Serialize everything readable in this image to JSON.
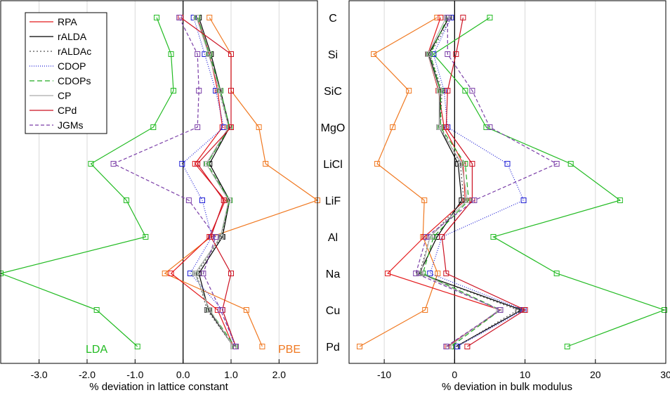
{
  "materials": [
    "C",
    "Si",
    "SiC",
    "MgO",
    "LiCl",
    "LiF",
    "Al",
    "Na",
    "Cu",
    "Pd"
  ],
  "legend": [
    {
      "name": "RPA",
      "color": "#e41a1c",
      "dash": "",
      "marker": false
    },
    {
      "name": "rALDA",
      "color": "#000000",
      "dash": "",
      "marker": false
    },
    {
      "name": "rALDAc",
      "color": "#555555",
      "dash": "2,3",
      "marker": false
    },
    {
      "name": "CDOP",
      "color": "#1f1fd6",
      "dash": "1,2",
      "marker": false
    },
    {
      "name": "CDOPs",
      "color": "#22aa22",
      "dash": "7,4",
      "marker": false
    },
    {
      "name": "CP",
      "color": "#aaaaaa",
      "dash": "",
      "marker": false
    },
    {
      "name": "CPd",
      "color": "#cc1122",
      "dash": "",
      "marker": false
    },
    {
      "name": "JGMs",
      "color": "#7b3fa8",
      "dash": "5,3",
      "marker": false
    }
  ],
  "chart_data": [
    {
      "type": "line",
      "orientation": "horizontal",
      "xlabel": "% deviation in lattice constant",
      "xlim": [
        -3.8,
        2.8
      ],
      "xticks": [
        -3.0,
        -2.0,
        -1.0,
        0.0,
        1.0,
        2.0
      ],
      "xticklabels": [
        "-3.0",
        "-2.0",
        "-1.0",
        "0.0",
        "1.0",
        "2.0"
      ],
      "categories": [
        "C",
        "Si",
        "SiC",
        "MgO",
        "LiCl",
        "LiF",
        "Al",
        "Na",
        "Cu",
        "Pd"
      ],
      "annotations": [
        {
          "text": "LDA",
          "color": "#22bb22"
        },
        {
          "text": "PBE",
          "color": "#f07820"
        }
      ],
      "series": [
        {
          "name": "LDA",
          "color": "#22bb22",
          "dash": "",
          "marker": true,
          "values": [
            -0.55,
            -0.25,
            -0.2,
            -0.62,
            -1.92,
            -1.18,
            -0.78,
            -3.8,
            -1.8,
            -0.95
          ]
        },
        {
          "name": "PBE",
          "color": "#f07820",
          "dash": "",
          "marker": true,
          "values": [
            0.55,
            1.0,
            1.0,
            1.58,
            1.72,
            2.8,
            0.58,
            -0.38,
            1.32,
            1.65
          ]
        },
        {
          "name": "RPA",
          "color": "#e41a1c",
          "dash": "",
          "marker": true,
          "values": [
            0.3,
            0.55,
            0.72,
            0.82,
            0.25,
            0.88,
            0.55,
            -0.25,
            0.72,
            1.05
          ]
        },
        {
          "name": "rALDA",
          "color": "#000000",
          "dash": "",
          "marker": true,
          "values": [
            0.33,
            0.58,
            0.78,
            0.97,
            0.55,
            0.97,
            0.82,
            0.33,
            0.53,
            1.05
          ]
        },
        {
          "name": "rALDAc",
          "color": "#555555",
          "dash": "2,3",
          "marker": true,
          "values": [
            0.3,
            0.55,
            0.75,
            0.95,
            0.5,
            0.95,
            0.8,
            0.28,
            0.5,
            1.05
          ]
        },
        {
          "name": "CDOP",
          "color": "#1f1fd6",
          "dash": "1,2",
          "marker": true,
          "values": [
            0.22,
            0.45,
            0.68,
            0.85,
            -0.02,
            0.4,
            0.6,
            0.15,
            0.82,
            1.08
          ]
        },
        {
          "name": "CDOPs",
          "color": "#22aa22",
          "dash": "7,4",
          "marker": true,
          "values": [
            0.3,
            0.55,
            0.78,
            0.97,
            0.5,
            0.97,
            0.78,
            0.25,
            0.55,
            1.08
          ]
        },
        {
          "name": "CP",
          "color": "#aaaaaa",
          "dash": "",
          "marker": true,
          "values": [
            0.28,
            0.53,
            0.76,
            0.95,
            0.48,
            0.95,
            0.78,
            0.25,
            0.55,
            1.05
          ]
        },
        {
          "name": "CPd",
          "color": "#cc1122",
          "dash": "",
          "marker": true,
          "values": [
            -0.05,
            1.0,
            1.0,
            1.0,
            0.3,
            0.85,
            0.58,
            1.0,
            0.82,
            1.1
          ]
        },
        {
          "name": "JGMs",
          "color": "#7b3fa8",
          "dash": "5,3",
          "marker": true,
          "values": [
            -0.08,
            0.3,
            0.33,
            0.3,
            -1.45,
            0.12,
            0.68,
            0.42,
            0.78,
            1.1
          ]
        }
      ]
    },
    {
      "type": "line",
      "orientation": "horizontal",
      "xlabel": "% deviation in bulk modulus",
      "xlim": [
        -15,
        30
      ],
      "xticks": [
        -10,
        0,
        10,
        20,
        30
      ],
      "xticklabels": [
        "-10",
        "0",
        "10",
        "20",
        "30"
      ],
      "categories": [
        "C",
        "Si",
        "SiC",
        "MgO",
        "LiCl",
        "LiF",
        "Al",
        "Na",
        "Cu",
        "Pd"
      ],
      "series": [
        {
          "name": "LDA",
          "color": "#22bb22",
          "dash": "",
          "marker": true,
          "values": [
            5.0,
            -3.0,
            1.5,
            4.5,
            16.5,
            23.5,
            5.5,
            14.5,
            29.8,
            16.0
          ]
        },
        {
          "name": "PBE",
          "color": "#f07820",
          "dash": "",
          "marker": true,
          "values": [
            -2.5,
            -11.5,
            -6.5,
            -8.8,
            -11.0,
            -4.3,
            -4.5,
            -2.4,
            -4.2,
            -13.5
          ]
        },
        {
          "name": "RPA",
          "color": "#e41a1c",
          "dash": "",
          "marker": true,
          "values": [
            -2.0,
            -3.8,
            -2.3,
            -1.5,
            1.2,
            1.5,
            -4.3,
            -9.5,
            6.5,
            -1.0
          ]
        },
        {
          "name": "rALDA",
          "color": "#000000",
          "dash": "",
          "marker": true,
          "values": [
            -0.8,
            -3.7,
            -2.0,
            -2.2,
            0.5,
            1.0,
            -2.5,
            -5.0,
            9.5,
            0.2
          ]
        },
        {
          "name": "rALDAc",
          "color": "#555555",
          "dash": "2,3",
          "marker": true,
          "values": [
            -0.5,
            -3.5,
            -1.8,
            -2.0,
            0.8,
            1.3,
            -3.5,
            -5.0,
            9.0,
            0.3
          ]
        },
        {
          "name": "CDOP",
          "color": "#1f1fd6",
          "dash": "1,2",
          "marker": true,
          "values": [
            -0.5,
            -3.0,
            -1.5,
            -1.0,
            7.5,
            9.8,
            -1.8,
            -3.5,
            9.8,
            0.4
          ]
        },
        {
          "name": "CDOPs",
          "color": "#22aa22",
          "dash": "7,4",
          "marker": true,
          "values": [
            -1.0,
            -3.5,
            -2.0,
            -2.0,
            1.5,
            2.0,
            -3.0,
            -4.5,
            6.5,
            -0.5
          ]
        },
        {
          "name": "CP",
          "color": "#aaaaaa",
          "dash": "",
          "marker": true,
          "values": [
            -1.2,
            -3.8,
            -2.2,
            -2.2,
            1.0,
            1.8,
            -3.5,
            -4.8,
            6.3,
            -0.8
          ]
        },
        {
          "name": "CPd",
          "color": "#cc1122",
          "dash": "",
          "marker": true,
          "values": [
            1.2,
            0.2,
            -1.0,
            -1.2,
            2.5,
            2.5,
            -1.8,
            -1.2,
            10.0,
            1.8
          ]
        },
        {
          "name": "JGMs",
          "color": "#7b3fa8",
          "dash": "5,3",
          "marker": true,
          "values": [
            -1.0,
            -1.0,
            2.5,
            5.0,
            14.5,
            2.8,
            -4.0,
            -5.5,
            6.5,
            -1.2
          ]
        }
      ]
    }
  ]
}
